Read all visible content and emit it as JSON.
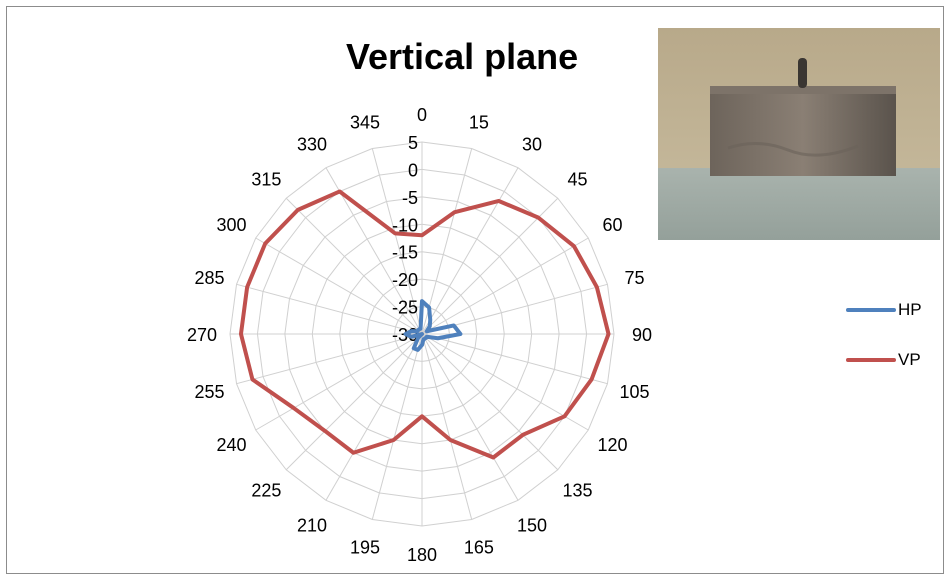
{
  "chart_data": {
    "type": "radar",
    "title": "Vertical plane",
    "angle_labels": [
      "0",
      "15",
      "30",
      "45",
      "60",
      "75",
      "90",
      "105",
      "120",
      "135",
      "150",
      "165",
      "180",
      "195",
      "210",
      "225",
      "240",
      "255",
      "270",
      "285",
      "300",
      "315",
      "330",
      "345"
    ],
    "radial_ticks": [
      5,
      0,
      -5,
      -10,
      -15,
      -20,
      -25,
      -30
    ],
    "rlim": [
      -30,
      5
    ],
    "grid": true,
    "legend_position": "right",
    "series": [
      {
        "name": "HP",
        "color": "#4f81bd",
        "values": [
          -24,
          -25,
          -27,
          -28,
          -29,
          -24,
          -23,
          -27,
          -29,
          -29,
          -29,
          -29,
          -28,
          -27,
          -27,
          -29,
          -30,
          -28,
          -27,
          -28,
          -29,
          -29,
          -29,
          -29
        ]
      },
      {
        "name": "VP",
        "color": "#c0504d",
        "values": [
          -12,
          -7,
          -2,
          0,
          2,
          3,
          4,
          2,
          0,
          -4,
          -4,
          -10,
          -15,
          -10,
          -5,
          -5,
          -3,
          2,
          3,
          3,
          3,
          2,
          0,
          -11
        ]
      }
    ]
  },
  "photo": {
    "description_icon": "concrete-block-photo"
  }
}
